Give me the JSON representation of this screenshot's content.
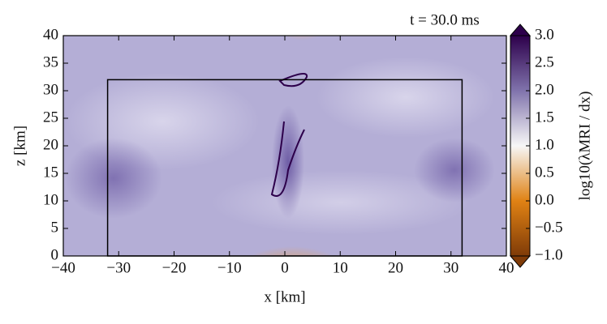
{
  "chart_data": {
    "type": "heatmap",
    "title": "t  =  30.0 ms",
    "xlabel": "x [km]",
    "ylabel": "z [km]",
    "xlim": [
      -40,
      40
    ],
    "ylim": [
      0,
      40
    ],
    "xticks": [
      {
        "value": -40,
        "label": "−40"
      },
      {
        "value": -30,
        "label": "−30"
      },
      {
        "value": -20,
        "label": "−20"
      },
      {
        "value": -10,
        "label": "−10"
      },
      0,
      10,
      20,
      30,
      40
    ],
    "yticks": [
      0,
      5,
      10,
      15,
      20,
      25,
      30,
      35,
      40
    ],
    "colorbar": {
      "label": "log10(λMRI / dx)",
      "clim": [
        -1,
        3
      ],
      "cmap": [
        "#7f3b08",
        "#e08214",
        "#f7f7f7",
        "#8073ac",
        "#2d004b"
      ],
      "ticks": [
        {
          "value": -1,
          "label": "−1.0"
        },
        {
          "value": -0.5,
          "label": "−0.5"
        },
        {
          "value": 0,
          "label": "0.0"
        },
        {
          "value": 0.5,
          "label": "0.5"
        },
        {
          "value": 1,
          "label": "1.0"
        },
        {
          "value": 1.5,
          "label": "1.5"
        },
        {
          "value": 2,
          "label": "2.0"
        },
        {
          "value": 2.5,
          "label": "2.5"
        },
        {
          "value": 3,
          "label": "3.0"
        }
      ]
    },
    "box": {
      "xlim": [
        -32,
        32
      ],
      "ylim": [
        0,
        32
      ]
    }
  }
}
